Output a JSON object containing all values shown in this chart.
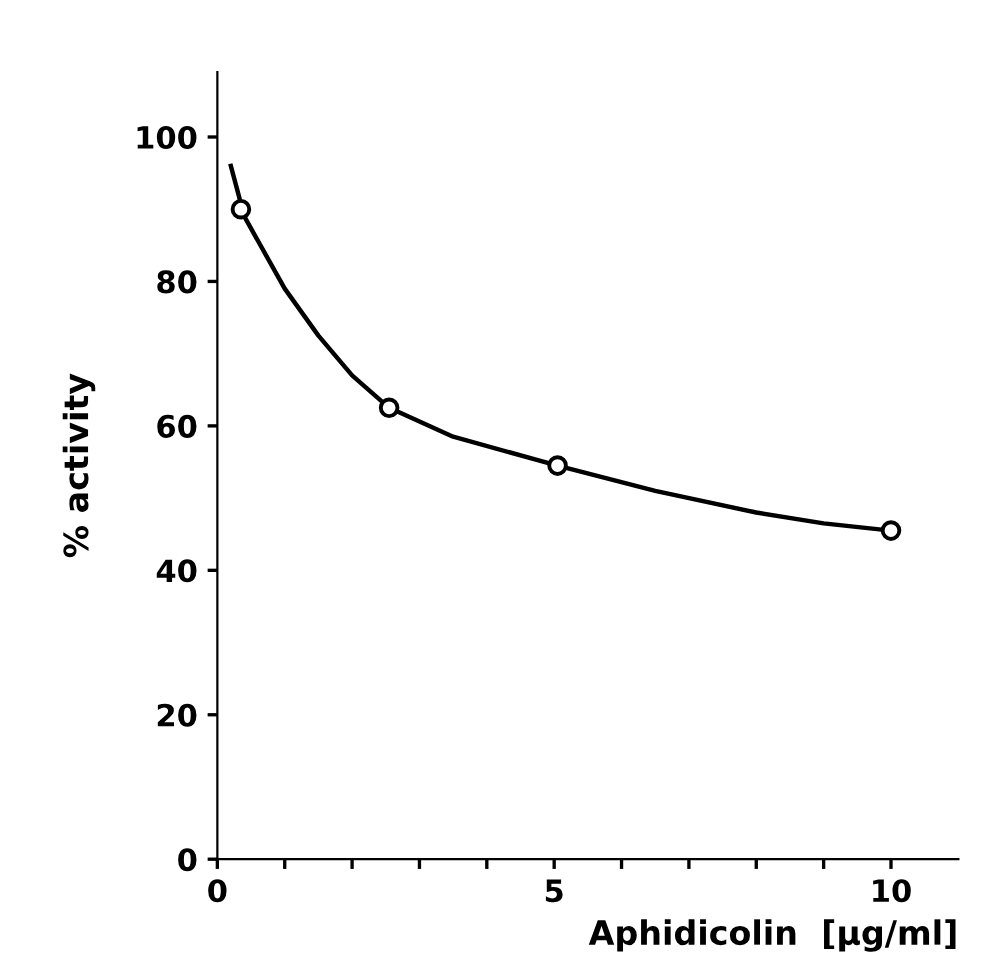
{
  "chart_data": {
    "type": "scatter",
    "xlabel": "Aphidicolin  [µg/ml]",
    "ylabel": "% activity",
    "xlim": [
      0,
      11
    ],
    "ylim": [
      0,
      109
    ],
    "xticks": [
      0,
      {
        "value": 1,
        "label": null
      },
      {
        "value": 2,
        "label": null
      },
      {
        "value": 3,
        "label": null
      },
      {
        "value": 4,
        "label": null
      },
      5,
      {
        "value": 6,
        "label": null
      },
      {
        "value": 7,
        "label": null
      },
      {
        "value": 8,
        "label": null
      },
      {
        "value": 9,
        "label": null
      },
      10
    ],
    "yticks": [
      0,
      20,
      40,
      60,
      80,
      100
    ],
    "grid": false,
    "legend": false,
    "series": [
      {
        "type": "line",
        "color": "#000000",
        "marker": "none",
        "line_style": "solid",
        "x": [
          0.2,
          0.4,
          1,
          1.5,
          2,
          2.55,
          3.5,
          5.05,
          6.5,
          8,
          9,
          10
        ],
        "values": [
          96,
          89,
          79,
          72.5,
          67,
          62.5,
          58.5,
          54.5,
          51,
          48,
          46.5,
          45.5
        ]
      },
      {
        "color": "#000000",
        "marker": "circle",
        "x": [
          0.35,
          2.55,
          5.05,
          10
        ],
        "values": [
          90,
          62.5,
          54.5,
          45.5
        ]
      }
    ]
  }
}
